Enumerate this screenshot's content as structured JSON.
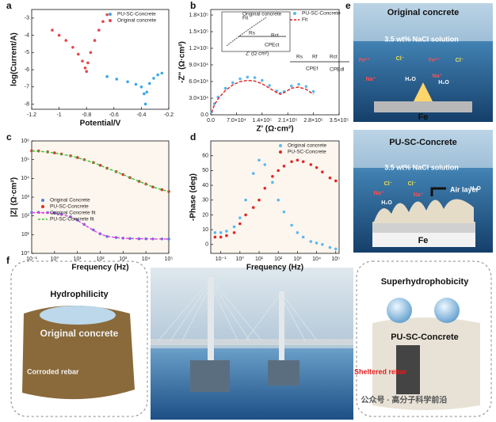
{
  "chart_data": [
    {
      "type": "line",
      "xlabel": "Potential/V",
      "ylabel": "log(Current/A)",
      "xlim": [
        -1.2,
        -0.2
      ],
      "xticks": [
        -1.2,
        -1.0,
        -0.8,
        -0.6,
        -0.4,
        -0.2
      ],
      "ylim": [
        -8.3,
        -2.5
      ],
      "yticks": [
        -8,
        -7,
        -6,
        -5,
        -4,
        -3
      ],
      "legend": "upper right",
      "series": [
        {
          "name": "PU-SC-Concrete",
          "color": "#3ba7e6",
          "x": [
            -0.65,
            -0.58,
            -0.5,
            -0.44,
            -0.4,
            -0.38,
            -0.37,
            -0.36,
            -0.34,
            -0.31,
            -0.28,
            -0.25
          ],
          "values": [
            -6.4,
            -6.55,
            -6.7,
            -6.85,
            -7.0,
            -7.4,
            -8.0,
            -7.3,
            -6.8,
            -6.5,
            -6.3,
            -6.2
          ]
        },
        {
          "name": "Original concrete",
          "color": "#e5484d",
          "x": [
            -1.05,
            -1.0,
            -0.95,
            -0.9,
            -0.86,
            -0.83,
            -0.81,
            -0.8,
            -0.79,
            -0.77,
            -0.74,
            -0.71,
            -0.68,
            -0.65
          ],
          "values": [
            -3.7,
            -4.0,
            -4.3,
            -4.7,
            -5.1,
            -5.5,
            -5.9,
            -6.1,
            -5.6,
            -5.0,
            -4.3,
            -3.7,
            -3.2,
            -2.8
          ]
        }
      ]
    },
    {
      "type": "line",
      "xlabel": "Z' (Ω·cm²)",
      "ylabel": "-Z'' (Ω·cm²)",
      "xlim": [
        0,
        350000
      ],
      "xticks": [
        {
          "value": 0,
          "label": "0.0"
        },
        {
          "value": 70000,
          "label": "7.0×10⁴"
        },
        {
          "value": 140000,
          "label": "1.4×10⁵"
        },
        {
          "value": 210000,
          "label": "2.1×10⁵"
        },
        {
          "value": 280000,
          "label": "2.8×10⁵"
        },
        {
          "value": 350000,
          "label": "3.5×10⁵"
        }
      ],
      "ylim": [
        0,
        190000
      ],
      "yticks": [
        {
          "value": 0,
          "label": "0.0"
        },
        {
          "value": 30000,
          "label": "3.0×10⁴"
        },
        {
          "value": 60000,
          "label": "6.0×10⁴"
        },
        {
          "value": 90000,
          "label": "9.0×10⁴"
        },
        {
          "value": 120000,
          "label": "1.2×10⁵"
        },
        {
          "value": 150000,
          "label": "1.5×10⁵"
        },
        {
          "value": 180000,
          "label": "1.8×10⁵"
        }
      ],
      "legend": "upper right",
      "annotations": [
        "Original concrete",
        "Fit",
        "Rs",
        "Rct",
        "CPEct",
        "Rs",
        "Rf",
        "Rct",
        "CPEf",
        "CPEdl",
        "Z' (Ω·cm²)"
      ],
      "series": [
        {
          "name": "PU-SC-Concrete",
          "color": "#5bb8f0",
          "x": [
            2000,
            10000,
            20000,
            40000,
            60000,
            80000,
            100000,
            120000,
            140000,
            160000,
            180000,
            190000,
            200000,
            220000,
            240000,
            260000,
            280000
          ],
          "values": [
            5000,
            20000,
            32000,
            48000,
            58000,
            65000,
            68000,
            67000,
            62000,
            53000,
            43000,
            39000,
            42000,
            52000,
            55000,
            51000,
            42000
          ]
        },
        {
          "name": "Fit",
          "color": "#e02020",
          "dashed": true,
          "x": [
            2000,
            10000,
            20000,
            40000,
            60000,
            80000,
            100000,
            120000,
            140000,
            160000,
            180000,
            190000,
            200000,
            220000,
            240000,
            260000,
            280000
          ],
          "values": [
            4000,
            18000,
            29000,
            44000,
            54000,
            60000,
            62000,
            61000,
            56000,
            48000,
            40000,
            37000,
            40000,
            48000,
            50000,
            46000,
            37000
          ]
        }
      ]
    },
    {
      "type": "line",
      "log_x": true,
      "log_y": true,
      "xlabel": "Frequency (Hz)",
      "ylabel": "|Z| (Ω·cm²)",
      "xlim": [
        0.1,
        100000
      ],
      "xticks": [
        {
          "value": 0.1,
          "label": "10⁻¹"
        },
        {
          "value": 1,
          "label": "10⁰"
        },
        {
          "value": 10,
          "label": "10¹"
        },
        {
          "value": 100,
          "label": "10²"
        },
        {
          "value": 1000,
          "label": "10³"
        },
        {
          "value": 10000,
          "label": "10⁴"
        },
        {
          "value": 100000,
          "label": "10⁵"
        }
      ],
      "ylim": [
        1,
        1000000
      ],
      "yticks": [
        {
          "value": 1,
          "label": "10⁰"
        },
        {
          "value": 10,
          "label": "10¹"
        },
        {
          "value": 100,
          "label": "10²"
        },
        {
          "value": 1000,
          "label": "10³"
        },
        {
          "value": 10000,
          "label": "10⁴"
        },
        {
          "value": 100000,
          "label": "10⁵"
        },
        {
          "value": 1000000,
          "label": "10⁶"
        }
      ],
      "legend": "lower left",
      "series": [
        {
          "name": "Original Concrete",
          "color": "#4a7fe0",
          "x": [
            0.1,
            0.2,
            0.5,
            1,
            2,
            5,
            10,
            20,
            50,
            100,
            200,
            500,
            1000,
            2000,
            5000,
            10000,
            20000,
            50000,
            100000
          ],
          "values": [
            150,
            155,
            150,
            140,
            120,
            90,
            60,
            35,
            18,
            11,
            8,
            7,
            6.5,
            6.2,
            6,
            6,
            5.9,
            5.9,
            5.8
          ]
        },
        {
          "name": "PU-SC-Concrete",
          "color": "#e02828",
          "x": [
            0.1,
            0.2,
            0.5,
            1,
            2,
            5,
            10,
            20,
            50,
            100,
            200,
            500,
            1000,
            2000,
            5000,
            10000,
            20000,
            50000,
            100000
          ],
          "values": [
            300000,
            290000,
            260000,
            230000,
            200000,
            160000,
            130000,
            100000,
            70000,
            50000,
            35000,
            23000,
            16000,
            11000,
            7000,
            5000,
            3500,
            2500,
            2000
          ]
        },
        {
          "name": "Original Concrete fit",
          "color": "#e040e0",
          "dashed": true,
          "x": [
            0.1,
            0.2,
            0.5,
            1,
            2,
            5,
            10,
            20,
            50,
            100,
            200,
            500,
            1000,
            2000,
            5000,
            10000,
            20000,
            50000,
            100000
          ],
          "values": [
            148,
            152,
            148,
            138,
            118,
            88,
            58,
            34,
            17,
            11,
            8,
            7,
            6.5,
            6.2,
            6,
            6,
            5.9,
            5.9,
            5.8
          ]
        },
        {
          "name": "PU-SC-Concrete fit",
          "color": "#3cc040",
          "dashed": true,
          "x": [
            0.1,
            0.2,
            0.5,
            1,
            2,
            5,
            10,
            20,
            50,
            100,
            200,
            500,
            1000,
            2000,
            5000,
            10000,
            20000,
            50000,
            100000
          ],
          "values": [
            290000,
            280000,
            255000,
            225000,
            195000,
            158000,
            128000,
            99000,
            69000,
            50000,
            35000,
            23000,
            16000,
            11000,
            7000,
            5000,
            3500,
            2500,
            2000
          ]
        }
      ]
    },
    {
      "type": "line",
      "log_x": true,
      "xlabel": "Frequency (Hz)",
      "ylabel": "-Phase (deg)",
      "xlim": [
        0.03,
        150000
      ],
      "xticks": [
        {
          "value": 0.1,
          "label": "10⁻¹"
        },
        {
          "value": 1,
          "label": "10⁰"
        },
        {
          "value": 10,
          "label": "10¹"
        },
        {
          "value": 100,
          "label": "10²"
        },
        {
          "value": 1000,
          "label": "10³"
        },
        {
          "value": 10000,
          "label": "10⁴"
        },
        {
          "value": 100000,
          "label": "10⁵"
        }
      ],
      "ylim": [
        -6,
        70
      ],
      "yticks": [
        0,
        10,
        20,
        30,
        40,
        50,
        60
      ],
      "legend": "upper right",
      "series": [
        {
          "name": "Original concrete",
          "color": "#5bb8f0",
          "x": [
            0.05,
            0.1,
            0.2,
            0.5,
            1,
            2,
            5,
            10,
            20,
            50,
            100,
            200,
            500,
            1000,
            2000,
            5000,
            10000,
            20000,
            50000,
            100000
          ],
          "values": [
            8,
            8,
            9,
            12,
            18,
            30,
            48,
            57,
            54,
            42,
            30,
            22,
            13,
            8,
            5,
            2,
            1,
            0,
            -2,
            -3
          ]
        },
        {
          "name": "PU-SC-Concrete",
          "color": "#e02828",
          "x": [
            0.05,
            0.1,
            0.2,
            0.5,
            1,
            2,
            5,
            10,
            20,
            50,
            100,
            200,
            500,
            1000,
            2000,
            5000,
            10000,
            20000,
            50000,
            100000
          ],
          "values": [
            5,
            5,
            6,
            8,
            14,
            20,
            25,
            30,
            38,
            46,
            50,
            53,
            56,
            57,
            56,
            54,
            52,
            49,
            45,
            43
          ]
        }
      ]
    }
  ],
  "figure": {
    "letters": [
      "a",
      "b",
      "c",
      "d",
      "e",
      "f"
    ],
    "e": {
      "top_title": "Original concrete",
      "solution": "3.5 wt% NaCl solution",
      "fe": "Fe",
      "ions": [
        "Fe²⁺",
        "Cl⁻",
        "Na⁺",
        "Fe²⁺",
        "H₂O",
        "Na⁺",
        "H₂O",
        "Cl⁻"
      ],
      "bottom_title": "PU-SC-Concrete",
      "solution2": "3.5 wt% NaCl solution",
      "air": "Air layer",
      "fe2": "Fe",
      "ions2": [
        "Cl⁻",
        "Cl⁻",
        "Na⁺",
        "H₂O",
        "Na⁺",
        "H₂O"
      ]
    },
    "f": {
      "hydro": "Hydrophilicity",
      "orig": "Original concrete",
      "corroded": "Corroded rebar",
      "super": "Superhydrophobicity",
      "pusc": "PU-SC-Concrete",
      "sheltered": "Sheltered rebar",
      "watermark": "公众号 · 高分子科学前沿"
    }
  }
}
